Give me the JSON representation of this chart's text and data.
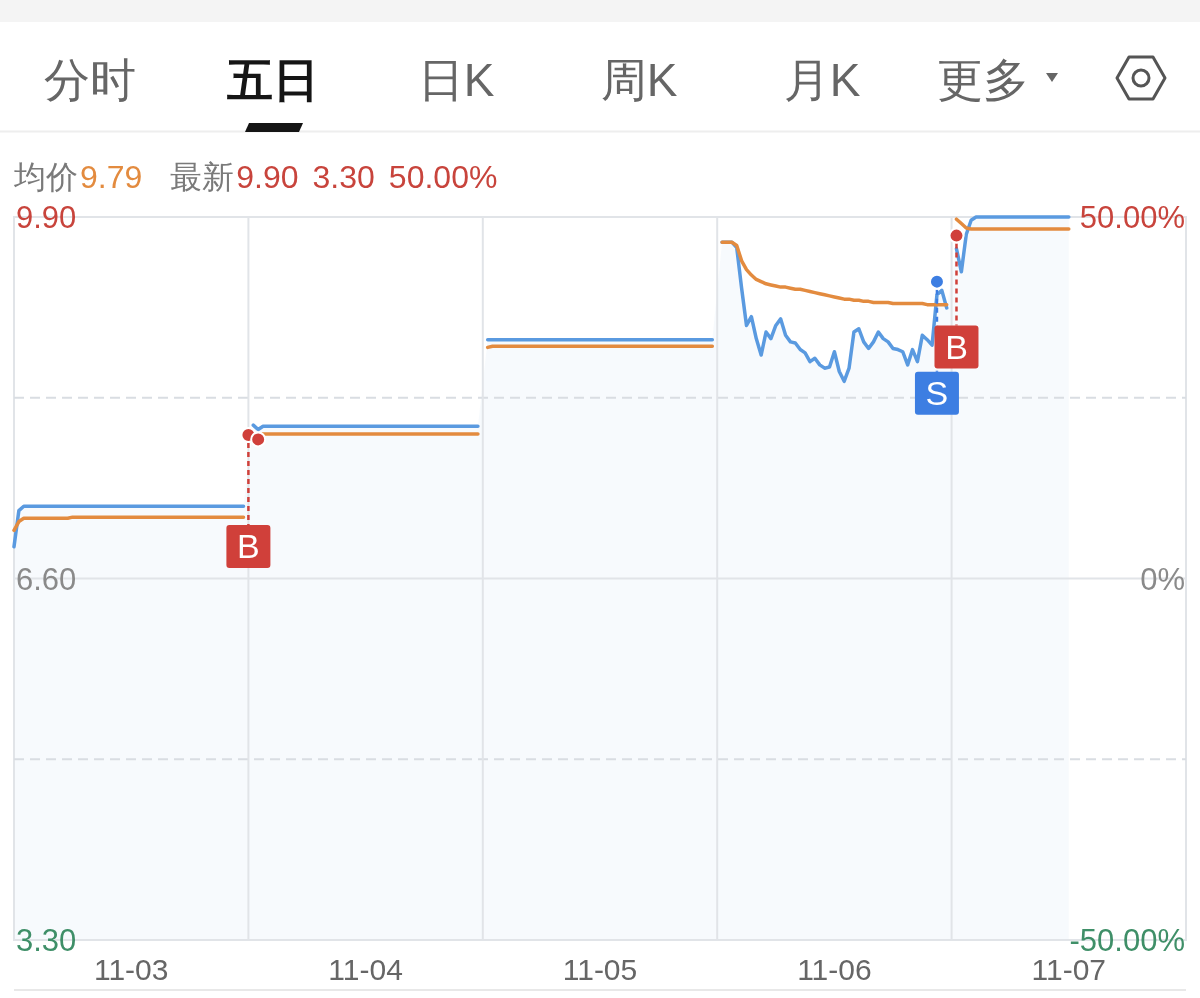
{
  "chart_data": {
    "type": "line",
    "annotations": [
      "分时",
      "五日",
      "日K",
      "周K",
      "月K",
      "更多",
      "均价",
      "9.79",
      "最新",
      "9.90",
      "3.30",
      "50.00%",
      {
        "text": "B",
        "y": 7.91
      },
      {
        "text": "S",
        "y": 9.31
      },
      {
        "text": "B",
        "y": 9.73
      }
    ],
    "categories": [
      null,
      null,
      null,
      null,
      null,
      null,
      null,
      null,
      null,
      null,
      null,
      null,
      null,
      null,
      null,
      null,
      null,
      null,
      null,
      null,
      null,
      null,
      null,
      null,
      "11-03",
      null,
      null,
      null,
      null,
      null,
      null,
      null,
      null,
      null,
      null,
      null,
      null,
      null,
      null,
      null,
      null,
      null,
      null,
      null,
      null,
      null,
      null,
      null,
      null,
      null,
      null,
      null,
      null,
      null,
      null,
      null,
      null,
      null,
      null,
      null,
      null,
      null,
      null,
      null,
      null,
      null,
      null,
      null,
      null,
      null,
      null,
      null,
      "11-04",
      null,
      null,
      null,
      null,
      null,
      null,
      null,
      null,
      null,
      null,
      null,
      null,
      null,
      null,
      null,
      null,
      null,
      null,
      null,
      null,
      null,
      null,
      null,
      null,
      null,
      null,
      null,
      null,
      null,
      null,
      null,
      null,
      null,
      null,
      null,
      null,
      null,
      null,
      null,
      null,
      null,
      null,
      null,
      null,
      null,
      null,
      null,
      "11-05",
      null,
      null,
      null,
      null,
      null,
      null,
      null,
      null,
      null,
      null,
      null,
      null,
      null,
      null,
      null,
      null,
      null,
      null,
      null,
      null,
      null,
      null,
      null,
      null,
      null,
      null,
      null,
      null,
      null,
      null,
      null,
      null,
      null,
      null,
      null,
      null,
      null,
      null,
      null,
      null,
      null,
      null,
      null,
      null,
      null,
      null,
      null,
      "11-06",
      null,
      null,
      null,
      null,
      null,
      null,
      null,
      null,
      null,
      null,
      null,
      null,
      null,
      null,
      null,
      null,
      null,
      null,
      null,
      null,
      null,
      null,
      null,
      null,
      null,
      null,
      null,
      null,
      null,
      null,
      null,
      null,
      null,
      null,
      null,
      null,
      null,
      null,
      null,
      null,
      null,
      null,
      null,
      null,
      null,
      null,
      null,
      "11-07",
      null,
      null,
      null,
      null,
      null,
      null,
      null,
      null,
      null,
      null,
      null,
      null,
      null,
      null,
      null,
      null,
      null,
      null,
      null,
      null,
      null,
      null,
      null,
      null
    ],
    "ylim": [
      3.3,
      9.9
    ],
    "yticks": [
      {
        "value": 3.3,
        "label": "3.30"
      },
      {
        "value": 4.95,
        "label": null
      },
      {
        "value": 6.6,
        "label": "6.60"
      },
      {
        "value": 8.25,
        "label": null
      },
      {
        "value": 9.9,
        "label": "9.90"
      }
    ],
    "y2lim": [
      -50,
      50
    ],
    "y2ticks": [
      {
        "value": -50,
        "label": "-50.00%"
      },
      {
        "value": 0,
        "label": "0%"
      },
      {
        "value": 50,
        "label": "50.00%"
      }
    ],
    "grid": "y",
    "series": [
      {
        "type": "area",
        "color": "#5a9ae0",
        "values": [
          6.89,
          7.22,
          7.26,
          7.26,
          7.26,
          7.26,
          7.26,
          7.26,
          7.26,
          7.26,
          7.26,
          7.26,
          7.26,
          7.26,
          7.26,
          7.26,
          7.26,
          7.26,
          7.26,
          7.26,
          7.26,
          7.26,
          7.26,
          7.26,
          7.26,
          7.26,
          7.26,
          7.26,
          7.26,
          7.26,
          7.26,
          7.26,
          7.26,
          7.26,
          7.26,
          7.26,
          7.26,
          7.26,
          7.26,
          7.26,
          7.26,
          7.26,
          7.26,
          7.26,
          7.26,
          7.26,
          7.26,
          7.26,
          null,
          8.0,
          7.96,
          7.99,
          7.99,
          7.99,
          7.99,
          7.99,
          7.99,
          7.99,
          7.99,
          7.99,
          7.99,
          7.99,
          7.99,
          7.99,
          7.99,
          7.99,
          7.99,
          7.99,
          7.99,
          7.99,
          7.99,
          7.99,
          7.99,
          7.99,
          7.99,
          7.99,
          7.99,
          7.99,
          7.99,
          7.99,
          7.99,
          7.99,
          7.99,
          7.99,
          7.99,
          7.99,
          7.99,
          7.99,
          7.99,
          7.99,
          7.99,
          7.99,
          7.99,
          7.99,
          7.99,
          7.99,
          null,
          8.78,
          8.78,
          8.78,
          8.78,
          8.78,
          8.78,
          8.78,
          8.78,
          8.78,
          8.78,
          8.78,
          8.78,
          8.78,
          8.78,
          8.78,
          8.78,
          8.78,
          8.78,
          8.78,
          8.78,
          8.78,
          8.78,
          8.78,
          8.78,
          8.78,
          8.78,
          8.78,
          8.78,
          8.78,
          8.78,
          8.78,
          8.78,
          8.78,
          8.78,
          8.78,
          8.78,
          8.78,
          8.78,
          8.78,
          8.78,
          8.78,
          8.78,
          8.78,
          8.78,
          8.78,
          8.78,
          8.78,
          null,
          9.67,
          9.67,
          9.67,
          9.62,
          9.25,
          8.91,
          8.99,
          8.79,
          8.64,
          8.85,
          8.79,
          8.91,
          8.97,
          8.82,
          8.76,
          8.75,
          8.69,
          8.66,
          8.58,
          8.61,
          8.55,
          8.52,
          8.53,
          8.67,
          8.49,
          8.4,
          8.52,
          8.85,
          8.88,
          8.76,
          8.7,
          8.76,
          8.85,
          8.79,
          8.76,
          8.7,
          8.69,
          8.67,
          8.55,
          8.69,
          8.58,
          8.82,
          8.78,
          8.73,
          9.19,
          9.23,
          9.07,
          null,
          9.61,
          9.4,
          9.74,
          9.87,
          9.9,
          9.9,
          9.9,
          9.9,
          9.9,
          9.9,
          9.9,
          9.9,
          9.9,
          9.9,
          9.9,
          9.9,
          9.9,
          9.9,
          9.9,
          9.9,
          9.9,
          9.9,
          9.9,
          9.9,
          null,
          null,
          null,
          null,
          null,
          null,
          null,
          null,
          null,
          null,
          null,
          null,
          null,
          null,
          null,
          null,
          null,
          null,
          null,
          null,
          null,
          null,
          null,
          null
        ]
      },
      {
        "color": "#e38b3f",
        "values": [
          7.04,
          7.12,
          7.15,
          7.15,
          7.15,
          7.15,
          7.15,
          7.15,
          7.15,
          7.15,
          7.15,
          7.15,
          7.16,
          7.16,
          7.16,
          7.16,
          7.16,
          7.16,
          7.16,
          7.16,
          7.16,
          7.16,
          7.16,
          7.16,
          7.16,
          7.16,
          7.16,
          7.16,
          7.16,
          7.16,
          7.16,
          7.16,
          7.16,
          7.16,
          7.16,
          7.16,
          7.16,
          7.16,
          7.16,
          7.16,
          7.16,
          7.16,
          7.16,
          7.16,
          7.16,
          7.16,
          7.16,
          7.16,
          null,
          7.88,
          7.9,
          7.92,
          7.92,
          7.92,
          7.92,
          7.92,
          7.92,
          7.92,
          7.92,
          7.92,
          7.92,
          7.92,
          7.92,
          7.92,
          7.92,
          7.92,
          7.92,
          7.92,
          7.92,
          7.92,
          7.92,
          7.92,
          7.92,
          7.92,
          7.92,
          7.92,
          7.92,
          7.92,
          7.92,
          7.92,
          7.92,
          7.92,
          7.92,
          7.92,
          7.92,
          7.92,
          7.92,
          7.92,
          7.92,
          7.92,
          7.92,
          7.92,
          7.92,
          7.92,
          7.92,
          7.92,
          null,
          8.71,
          8.72,
          8.72,
          8.72,
          8.72,
          8.72,
          8.72,
          8.72,
          8.72,
          8.72,
          8.72,
          8.72,
          8.72,
          8.72,
          8.72,
          8.72,
          8.72,
          8.72,
          8.72,
          8.72,
          8.72,
          8.72,
          8.72,
          8.72,
          8.72,
          8.72,
          8.72,
          8.72,
          8.72,
          8.72,
          8.72,
          8.72,
          8.72,
          8.72,
          8.72,
          8.72,
          8.72,
          8.72,
          8.72,
          8.72,
          8.72,
          8.72,
          8.72,
          8.72,
          8.72,
          8.72,
          8.72,
          null,
          9.67,
          9.67,
          9.67,
          9.64,
          9.5,
          9.42,
          9.37,
          9.33,
          9.31,
          9.29,
          9.28,
          9.27,
          9.26,
          9.26,
          9.25,
          9.24,
          9.24,
          9.23,
          9.22,
          9.21,
          9.2,
          9.19,
          9.18,
          9.17,
          9.16,
          9.15,
          9.15,
          9.14,
          9.14,
          9.13,
          9.13,
          9.12,
          9.12,
          9.12,
          9.12,
          9.11,
          9.11,
          9.11,
          9.11,
          9.11,
          9.11,
          9.11,
          9.1,
          9.1,
          9.1,
          9.1,
          9.1,
          null,
          9.88,
          9.84,
          9.8,
          9.79,
          9.79,
          9.79,
          9.79,
          9.79,
          9.79,
          9.79,
          9.79,
          9.79,
          9.79,
          9.79,
          9.79,
          9.79,
          9.79,
          9.79,
          9.79,
          9.79,
          9.79,
          9.79,
          9.79,
          9.79,
          null,
          null,
          null,
          null,
          null,
          null,
          null,
          null,
          null,
          null,
          null,
          null,
          null,
          null,
          null,
          null,
          null,
          null,
          null,
          null,
          null,
          null,
          null,
          null
        ]
      },
      {
        "type": "scatter",
        "marker": "circle",
        "color": "#d0403a",
        "values": [
          null,
          null,
          null,
          null,
          null,
          null,
          null,
          null,
          null,
          null,
          null,
          null,
          null,
          null,
          null,
          null,
          null,
          null,
          null,
          null,
          null,
          null,
          null,
          null,
          null,
          null,
          null,
          null,
          null,
          null,
          null,
          null,
          null,
          null,
          null,
          null,
          null,
          null,
          null,
          null,
          null,
          null,
          null,
          null,
          null,
          null,
          null,
          null,
          7.91,
          null,
          7.87,
          null,
          null,
          null,
          null,
          null,
          null,
          null,
          null,
          null,
          null,
          null,
          null,
          null,
          null,
          null,
          null,
          null,
          null,
          null,
          null,
          null,
          null,
          null,
          null,
          null,
          null,
          null,
          null,
          null,
          null,
          null,
          null,
          null,
          null,
          null,
          null,
          null,
          null,
          null,
          null,
          null,
          null,
          null,
          null,
          null,
          null,
          null,
          null,
          null,
          null,
          null,
          null,
          null,
          null,
          null,
          null,
          null,
          null,
          null,
          null,
          null,
          null,
          null,
          null,
          null,
          null,
          null,
          null,
          null,
          null,
          null,
          null,
          null,
          null,
          null,
          null,
          null,
          null,
          null,
          null,
          null,
          null,
          null,
          null,
          null,
          null,
          null,
          null,
          null,
          null,
          null,
          null,
          null,
          null,
          null,
          null,
          null,
          null,
          null,
          null,
          null,
          null,
          null,
          null,
          null,
          null,
          null,
          null,
          null,
          null,
          null,
          null,
          null,
          null,
          null,
          null,
          null,
          null,
          null,
          null,
          null,
          null,
          null,
          null,
          null,
          null,
          null,
          null,
          null,
          null,
          null,
          null,
          null,
          null,
          null,
          null,
          null,
          null,
          null,
          null,
          null,
          null,
          9.73,
          null,
          null,
          null,
          null,
          null,
          null,
          null,
          null,
          null,
          null,
          null,
          null,
          null,
          null,
          null,
          null,
          null,
          null,
          null,
          null,
          null,
          null,
          null,
          null,
          null,
          null,
          null,
          null,
          null,
          null,
          null,
          null,
          null,
          null,
          null,
          null,
          null,
          null,
          null,
          null,
          null,
          null,
          null,
          null,
          null,
          null,
          null
        ]
      },
      {
        "type": "scatter",
        "marker": "circle",
        "color": "#3d7ee2",
        "values": [
          null,
          null,
          null,
          null,
          null,
          null,
          null,
          null,
          null,
          null,
          null,
          null,
          null,
          null,
          null,
          null,
          null,
          null,
          null,
          null,
          null,
          null,
          null,
          null,
          null,
          null,
          null,
          null,
          null,
          null,
          null,
          null,
          null,
          null,
          null,
          null,
          null,
          null,
          null,
          null,
          null,
          null,
          null,
          null,
          null,
          null,
          null,
          null,
          null,
          null,
          null,
          null,
          null,
          null,
          null,
          null,
          null,
          null,
          null,
          null,
          null,
          null,
          null,
          null,
          null,
          null,
          null,
          null,
          null,
          null,
          null,
          null,
          null,
          null,
          null,
          null,
          null,
          null,
          null,
          null,
          null,
          null,
          null,
          null,
          null,
          null,
          null,
          null,
          null,
          null,
          null,
          null,
          null,
          null,
          null,
          null,
          null,
          null,
          null,
          null,
          null,
          null,
          null,
          null,
          null,
          null,
          null,
          null,
          null,
          null,
          null,
          null,
          null,
          null,
          null,
          null,
          null,
          null,
          null,
          null,
          null,
          null,
          null,
          null,
          null,
          null,
          null,
          null,
          null,
          null,
          null,
          null,
          null,
          null,
          null,
          null,
          null,
          null,
          null,
          null,
          null,
          null,
          null,
          null,
          null,
          null,
          null,
          null,
          null,
          null,
          null,
          null,
          null,
          null,
          null,
          null,
          null,
          null,
          null,
          null,
          null,
          null,
          null,
          null,
          null,
          null,
          null,
          null,
          null,
          null,
          null,
          null,
          null,
          null,
          null,
          null,
          null,
          null,
          null,
          null,
          null,
          null,
          null,
          null,
          null,
          null,
          null,
          null,
          null,
          9.31,
          null,
          null,
          null,
          null,
          null,
          null,
          null,
          null,
          null,
          null,
          null,
          null,
          null,
          null,
          null,
          null,
          null,
          null,
          null,
          null,
          null,
          null,
          null,
          null,
          null,
          null,
          null,
          null,
          null,
          null,
          null,
          null,
          null,
          null,
          null,
          null,
          null,
          null,
          null,
          null,
          null,
          null,
          null,
          null,
          null,
          null,
          null,
          null,
          null,
          null,
          null
        ]
      }
    ]
  }
}
